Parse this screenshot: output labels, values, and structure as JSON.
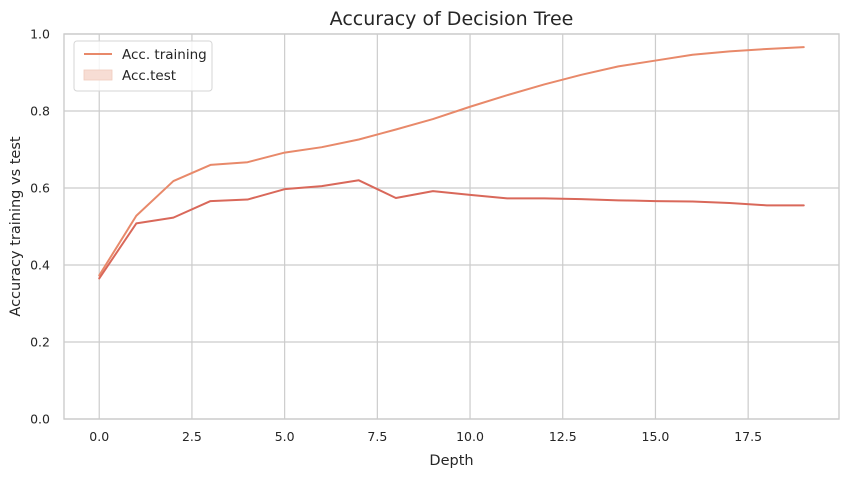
{
  "chart_data": {
    "type": "line",
    "title": "Accuracy of Decision Tree",
    "xlabel": "Depth",
    "ylabel": "Accuracy training vs test",
    "xlim": [
      -0.95,
      19.95
    ],
    "ylim": [
      0.0,
      1.0
    ],
    "xticks": [
      "0.0",
      "2.5",
      "5.0",
      "7.5",
      "10.0",
      "12.5",
      "15.0",
      "17.5"
    ],
    "xtick_values": [
      0,
      2.5,
      5,
      7.5,
      10,
      12.5,
      15,
      17.5
    ],
    "yticks": [
      "0.0",
      "0.2",
      "0.4",
      "0.6",
      "0.8",
      "1.0"
    ],
    "ytick_values": [
      0,
      0.2,
      0.4,
      0.6,
      0.8,
      1.0
    ],
    "grid": true,
    "legend_position": "top-left",
    "x": [
      0,
      1,
      2,
      3,
      4,
      5,
      6,
      7,
      8,
      9,
      10,
      11,
      12,
      13,
      14,
      15,
      16,
      17,
      18,
      19
    ],
    "series": [
      {
        "name": "Acc. training",
        "color": "#e8896a",
        "legend_style": "line",
        "values": [
          0.373,
          0.528,
          0.618,
          0.66,
          0.667,
          0.692,
          0.706,
          0.726,
          0.752,
          0.779,
          0.811,
          0.841,
          0.869,
          0.894,
          0.916,
          0.931,
          0.946,
          0.955,
          0.961,
          0.966
        ]
      },
      {
        "name": "Acc.test",
        "color": "#d9685a",
        "legend_style": "patch",
        "legend_fill": "#f7ddd4",
        "values": [
          0.365,
          0.508,
          0.523,
          0.566,
          0.57,
          0.597,
          0.605,
          0.62,
          0.574,
          0.592,
          0.582,
          0.573,
          0.573,
          0.571,
          0.568,
          0.566,
          0.565,
          0.561,
          0.555,
          0.555
        ]
      }
    ]
  }
}
